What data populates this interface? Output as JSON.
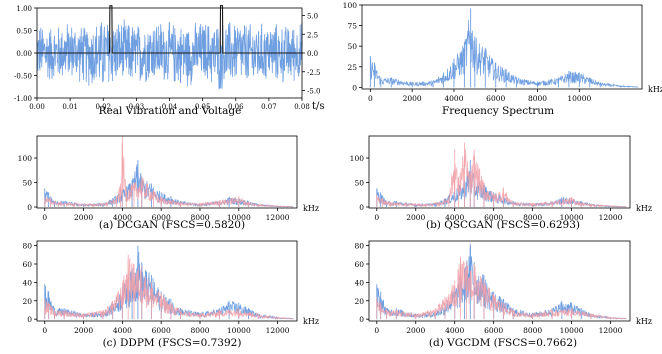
{
  "colors": {
    "real": "#6f9fe0",
    "generated": "#f2a0a8",
    "voltage": "#1a1a1a",
    "axis": "#000000"
  },
  "chart_data": [
    {
      "type": "line",
      "title": "Real Vibration and Voltage",
      "xlabel": "t/s",
      "ylabel": "",
      "xlim": [
        0.0,
        0.08
      ],
      "ylim": [
        -1.0,
        1.0
      ],
      "y2lim": [
        -6.0,
        6.0
      ],
      "x_ticks": [
        "0.00",
        "0.01",
        "0.02",
        "0.03",
        "0.04",
        "0.05",
        "0.06",
        "0.07",
        "0.08"
      ],
      "y_ticks": [
        "1.00",
        "0.50",
        "0.00",
        "-0.50",
        "-1.00"
      ],
      "y_tick_values": [
        1.0,
        0.5,
        0.0,
        -0.5,
        -1.0
      ],
      "y2_ticks": [
        "5.0",
        "2.5",
        "0.0",
        "-2.5",
        "-5.0"
      ],
      "y2_tick_values": [
        5.0,
        2.5,
        0.0,
        -2.5,
        -5.0
      ],
      "series": [
        {
          "role": "vibration",
          "axis": "left",
          "x": [
            0.0,
            0.005,
            0.01,
            0.015,
            0.02,
            0.025,
            0.03,
            0.035,
            0.04,
            0.045,
            0.05,
            0.055,
            0.06,
            0.065,
            0.07,
            0.075,
            0.08
          ],
          "y_upper": [
            0.72,
            0.65,
            0.78,
            0.62,
            0.85,
            0.8,
            0.7,
            0.86,
            0.74,
            0.66,
            0.78,
            0.72,
            0.84,
            0.68,
            0.74,
            0.66,
            0.76
          ],
          "y_lower": [
            -0.62,
            -0.72,
            -0.58,
            -0.8,
            -0.95,
            -0.68,
            -0.82,
            -0.64,
            -0.74,
            -0.86,
            -0.6,
            -0.96,
            -0.72,
            -0.84,
            -0.66,
            -0.76,
            -0.62
          ]
        },
        {
          "role": "voltage",
          "axis": "right",
          "x": [
            0.0,
            0.0219,
            0.022,
            0.0226,
            0.0227,
            0.0553,
            0.0554,
            0.056,
            0.0561,
            0.08
          ],
          "y": [
            0.0,
            0.0,
            6.3,
            6.3,
            0.0,
            0.0,
            6.3,
            6.3,
            0.0,
            0.0
          ]
        }
      ]
    },
    {
      "type": "line",
      "title": "Frequency Spectrum",
      "xunit": "kHz",
      "xlim": [
        -400,
        13000
      ],
      "ylim": [
        -2,
        100
      ],
      "x_ticks": [
        0,
        2000,
        4000,
        6000,
        8000,
        10000
      ],
      "y_ticks": [
        0,
        25,
        50,
        75,
        100
      ],
      "series": [
        {
          "role": "real",
          "x": [
            0,
            200,
            500,
            1000,
            2000,
            3000,
            3500,
            4000,
            4500,
            4800,
            5000,
            5500,
            6000,
            6500,
            7000,
            8000,
            9000,
            9500,
            10000,
            10500,
            11000,
            12000,
            12800
          ],
          "y": [
            38,
            30,
            12,
            12,
            6,
            8,
            18,
            35,
            55,
            96,
            62,
            48,
            30,
            22,
            12,
            7,
            12,
            20,
            18,
            12,
            6,
            2,
            1
          ]
        }
      ]
    },
    {
      "type": "line",
      "title": "(a) DCGAN (FSCS=0.5820)",
      "xunit": "kHz",
      "xlim": [
        -400,
        13000
      ],
      "ylim": [
        -2,
        145
      ],
      "x_ticks": [
        0,
        2000,
        4000,
        6000,
        8000,
        10000,
        12000
      ],
      "y_ticks": [
        0,
        50,
        100
      ],
      "series": [
        {
          "role": "real",
          "x": [
            0,
            200,
            500,
            1000,
            2000,
            3000,
            3500,
            4000,
            4500,
            4800,
            5000,
            5500,
            6000,
            6500,
            7000,
            8000,
            9000,
            9500,
            10000,
            10500,
            11000,
            12000,
            12800
          ],
          "y": [
            38,
            30,
            12,
            12,
            6,
            8,
            18,
            35,
            55,
            96,
            62,
            48,
            30,
            22,
            12,
            7,
            12,
            20,
            18,
            12,
            6,
            2,
            1
          ]
        },
        {
          "role": "generated",
          "x": [
            0,
            300,
            700,
            1500,
            2500,
            3200,
            3700,
            3900,
            4000,
            4200,
            4600,
            5000,
            5600,
            6000,
            7000,
            8000,
            9000,
            10000,
            10500,
            11000,
            12000,
            12800
          ],
          "y": [
            22,
            18,
            10,
            8,
            6,
            10,
            20,
            48,
            145,
            38,
            50,
            62,
            35,
            20,
            10,
            8,
            14,
            22,
            10,
            6,
            3,
            1
          ]
        }
      ]
    },
    {
      "type": "line",
      "title": "(b) QSCGAN (FSCS=0.6293)",
      "xunit": "kHz",
      "xlim": [
        -400,
        13000
      ],
      "ylim": [
        -2,
        145
      ],
      "x_ticks": [
        0,
        2000,
        4000,
        6000,
        8000,
        10000,
        12000
      ],
      "y_ticks": [
        0,
        50,
        100
      ],
      "series": [
        {
          "role": "real",
          "x": [
            0,
            200,
            500,
            1000,
            2000,
            3000,
            3500,
            4000,
            4500,
            4800,
            5000,
            5500,
            6000,
            6500,
            7000,
            8000,
            9000,
            9500,
            10000,
            10500,
            11000,
            12000,
            12800
          ],
          "y": [
            38,
            30,
            12,
            12,
            6,
            8,
            18,
            35,
            55,
            96,
            62,
            48,
            30,
            22,
            12,
            7,
            12,
            20,
            18,
            12,
            6,
            2,
            1
          ]
        },
        {
          "role": "generated",
          "x": [
            0,
            300,
            700,
            1500,
            2500,
            3200,
            3700,
            4000,
            4200,
            4500,
            4800,
            5000,
            5500,
            6000,
            6500,
            7000,
            8000,
            9000,
            10000,
            10500,
            11000,
            12000,
            12800
          ],
          "y": [
            26,
            18,
            10,
            8,
            6,
            10,
            22,
            118,
            60,
            132,
            70,
            118,
            50,
            28,
            40,
            10,
            8,
            12,
            20,
            10,
            6,
            3,
            1
          ]
        }
      ]
    },
    {
      "type": "line",
      "title": "(c) DDPM (FSCS=0.7392)",
      "xunit": "kHz",
      "xlim": [
        -400,
        13000
      ],
      "ylim": [
        -2,
        85
      ],
      "x_ticks": [
        0,
        2000,
        4000,
        6000,
        8000,
        10000,
        12000
      ],
      "y_ticks": [
        0,
        20,
        40,
        60,
        80
      ],
      "series": [
        {
          "role": "real",
          "x": [
            0,
            200,
            500,
            1000,
            2000,
            3000,
            3500,
            4000,
            4500,
            4800,
            5000,
            5500,
            6000,
            6500,
            7000,
            8000,
            9000,
            9500,
            10000,
            10500,
            11000,
            12000,
            12800
          ],
          "y": [
            38,
            30,
            12,
            12,
            6,
            8,
            18,
            35,
            55,
            80,
            62,
            48,
            30,
            22,
            12,
            7,
            12,
            20,
            18,
            12,
            6,
            2,
            1
          ]
        },
        {
          "role": "generated",
          "x": [
            0,
            200,
            500,
            1000,
            2000,
            3000,
            3500,
            4000,
            4300,
            4600,
            5000,
            5500,
            6000,
            6500,
            7000,
            8000,
            9000,
            10000,
            11000,
            12000,
            12800
          ],
          "y": [
            22,
            18,
            10,
            10,
            6,
            10,
            20,
            40,
            70,
            60,
            58,
            40,
            28,
            18,
            10,
            6,
            10,
            12,
            6,
            2,
            1
          ]
        }
      ]
    },
    {
      "type": "line",
      "title": "(d) VGCDM (FSCS=0.7662)",
      "xunit": "kHz",
      "xlim": [
        -400,
        13000
      ],
      "ylim": [
        -2,
        85
      ],
      "x_ticks": [
        0,
        2000,
        4000,
        6000,
        8000,
        10000,
        12000
      ],
      "y_ticks": [
        0,
        20,
        40,
        60,
        80
      ],
      "series": [
        {
          "role": "real",
          "x": [
            0,
            200,
            500,
            1000,
            2000,
            3000,
            3500,
            4000,
            4500,
            4800,
            5000,
            5500,
            6000,
            6500,
            7000,
            8000,
            9000,
            9500,
            10000,
            10500,
            11000,
            12000,
            12800
          ],
          "y": [
            38,
            30,
            12,
            12,
            6,
            8,
            18,
            35,
            55,
            82,
            62,
            48,
            30,
            22,
            12,
            7,
            12,
            20,
            18,
            12,
            6,
            2,
            1
          ]
        },
        {
          "role": "generated",
          "x": [
            0,
            200,
            500,
            1000,
            2000,
            3000,
            3500,
            4000,
            4300,
            4600,
            5000,
            5500,
            6000,
            6500,
            7000,
            8000,
            9000,
            10000,
            11000,
            12000,
            12800
          ],
          "y": [
            24,
            18,
            10,
            10,
            6,
            12,
            24,
            42,
            68,
            62,
            60,
            42,
            28,
            18,
            10,
            6,
            10,
            12,
            6,
            2,
            1
          ]
        }
      ]
    }
  ]
}
